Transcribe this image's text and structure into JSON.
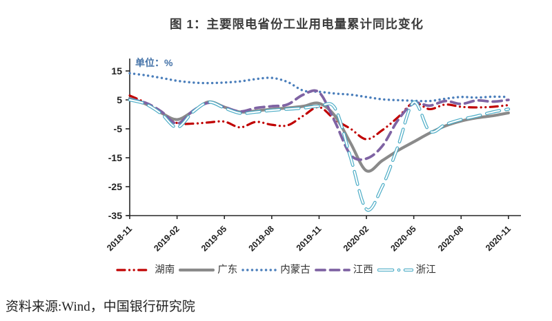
{
  "title": "图 1：主要限电省份工业用电量累计同比变化",
  "source": "资料来源:Wind，中国银行研究院",
  "colors": {
    "title_text": "#3a3a3a",
    "axis": "#262626",
    "unit_label": "#4472a8"
  },
  "chart_data": {
    "type": "line",
    "title": "图 1：主要限电省份工业用电量累计同比变化",
    "unit_label": "单位：%",
    "xlabel": "",
    "ylabel": "单位：%",
    "ylim": [
      -35,
      19
    ],
    "grid": false,
    "legend_position": "bottom",
    "x": [
      "2018-11",
      "2018-12",
      "2019-01",
      "2019-02",
      "2019-03",
      "2019-04",
      "2019-05",
      "2019-06",
      "2019-07",
      "2019-08",
      "2019-09",
      "2019-10",
      "2019-11",
      "2019-12",
      "2020-01",
      "2020-02",
      "2020-03",
      "2020-04",
      "2020-05",
      "2020-06",
      "2020-07",
      "2020-08",
      "2020-09",
      "2020-10",
      "2020-11"
    ],
    "x_tick_labels": [
      "2018-11",
      "2019-02",
      "2019-05",
      "2019-08",
      "2019-11",
      "2020-02",
      "2020-05",
      "2020-08",
      "2020-11"
    ],
    "y_ticks": [
      15,
      5,
      -5,
      -15,
      -25,
      -35
    ],
    "series": [
      {
        "key": "hunan",
        "name": "湖南",
        "color": "#c00000",
        "style": "dash-dot-dot",
        "width": 3.2,
        "values": [
          6.5,
          4.0,
          0.5,
          -3.0,
          -3.2,
          -2.8,
          -2.5,
          -4.5,
          -2.6,
          -3.6,
          -3.8,
          -0.5,
          2.5,
          -1.8,
          -5.0,
          -8.6,
          -5.5,
          -1.0,
          4.0,
          1.8,
          3.4,
          2.6,
          2.4,
          2.6,
          3.2
        ]
      },
      {
        "key": "guangdong",
        "name": "广东",
        "color": "#8a8a8a",
        "style": "solid",
        "width": 4.2,
        "values": [
          5.5,
          3.6,
          0.5,
          -1.8,
          1.0,
          4.3,
          2.5,
          0.8,
          1.2,
          1.8,
          2.2,
          2.8,
          3.8,
          -0.5,
          -10.0,
          -19.5,
          -16.0,
          -12.5,
          -9.5,
          -6.5,
          -4.0,
          -2.3,
          -1.2,
          -0.5,
          0.5
        ]
      },
      {
        "key": "neimenggu",
        "name": "内蒙古",
        "color": "#4a7ebb",
        "style": "dotted",
        "width": 3.4,
        "values": [
          14.2,
          13.5,
          12.6,
          11.6,
          11.0,
          10.8,
          11.0,
          11.4,
          12.2,
          12.6,
          11.2,
          8.2,
          7.8,
          7.2,
          6.8,
          6.0,
          5.2,
          4.9,
          4.7,
          4.6,
          5.4,
          6.0,
          5.8,
          6.1,
          6.0
        ]
      },
      {
        "key": "jiangxi",
        "name": "江西",
        "color": "#7f63a3",
        "style": "dashed",
        "width": 3.8,
        "values": [
          5.2,
          4.0,
          1.0,
          -3.2,
          1.2,
          4.0,
          2.5,
          1.0,
          2.2,
          2.8,
          3.4,
          6.8,
          7.6,
          -2.5,
          -14.0,
          -15.3,
          -11.0,
          -2.0,
          3.8,
          3.0,
          4.6,
          3.6,
          4.8,
          4.4,
          5.0
        ]
      },
      {
        "key": "zhejiang",
        "name": "浙江",
        "color": "#4bacc6",
        "style": "hollow-dash",
        "width": 4.6,
        "values": [
          5.0,
          3.6,
          0.2,
          -4.5,
          0.8,
          4.2,
          2.2,
          0.4,
          0.8,
          1.4,
          1.8,
          2.2,
          2.8,
          2.2,
          -15.0,
          -32.8,
          -25.0,
          -11.0,
          4.2,
          -5.8,
          -3.5,
          -1.8,
          -0.6,
          0.8,
          1.8
        ]
      }
    ]
  }
}
